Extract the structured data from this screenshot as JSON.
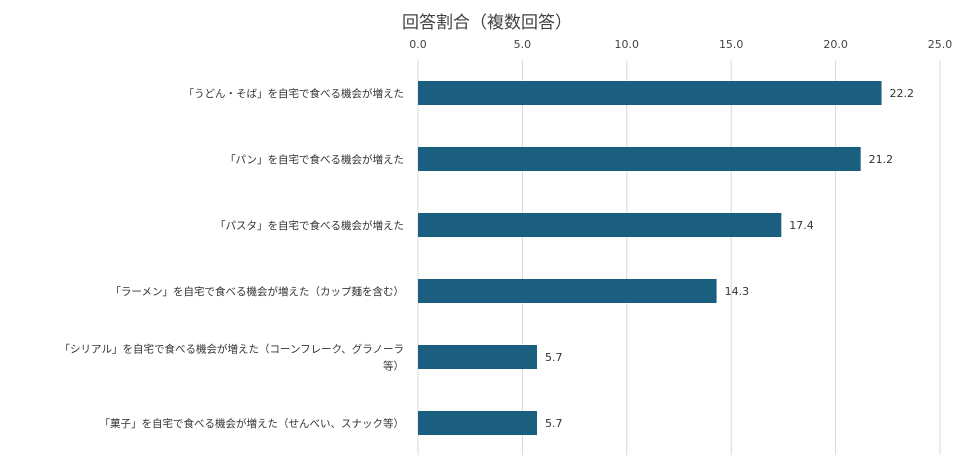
{
  "chart_data": {
    "type": "bar",
    "orientation": "horizontal",
    "title": "回答割合（複数回答）",
    "xlim": [
      0,
      25
    ],
    "xticks": [
      "0.0",
      "5.0",
      "10.0",
      "15.0",
      "20.0",
      "25.0"
    ],
    "xaxis_position": "top",
    "grid": true,
    "bar_color": "#1a5e80",
    "categories": [
      [
        "「うどん・そば」を自宅で食べる機会が増えた"
      ],
      [
        "「パン」を自宅で食べる機会が増えた"
      ],
      [
        "「パスタ」を自宅で食べる機会が増えた"
      ],
      [
        "「ラーメン」を自宅で食べる機会が増えた（カップ麺を含む）"
      ],
      [
        "「シリアル」を自宅で食べる機会が増えた（コーンフレーク、グラノーラ",
        "等）"
      ],
      [
        "「菓子」を自宅で食べる機会が増えた（せんべい、スナック等）"
      ]
    ],
    "values": [
      22.2,
      21.2,
      17.4,
      14.3,
      5.7,
      5.7
    ],
    "value_labels": [
      "22.2",
      "21.2",
      "17.4",
      "14.3",
      "5.7",
      "5.7"
    ]
  }
}
